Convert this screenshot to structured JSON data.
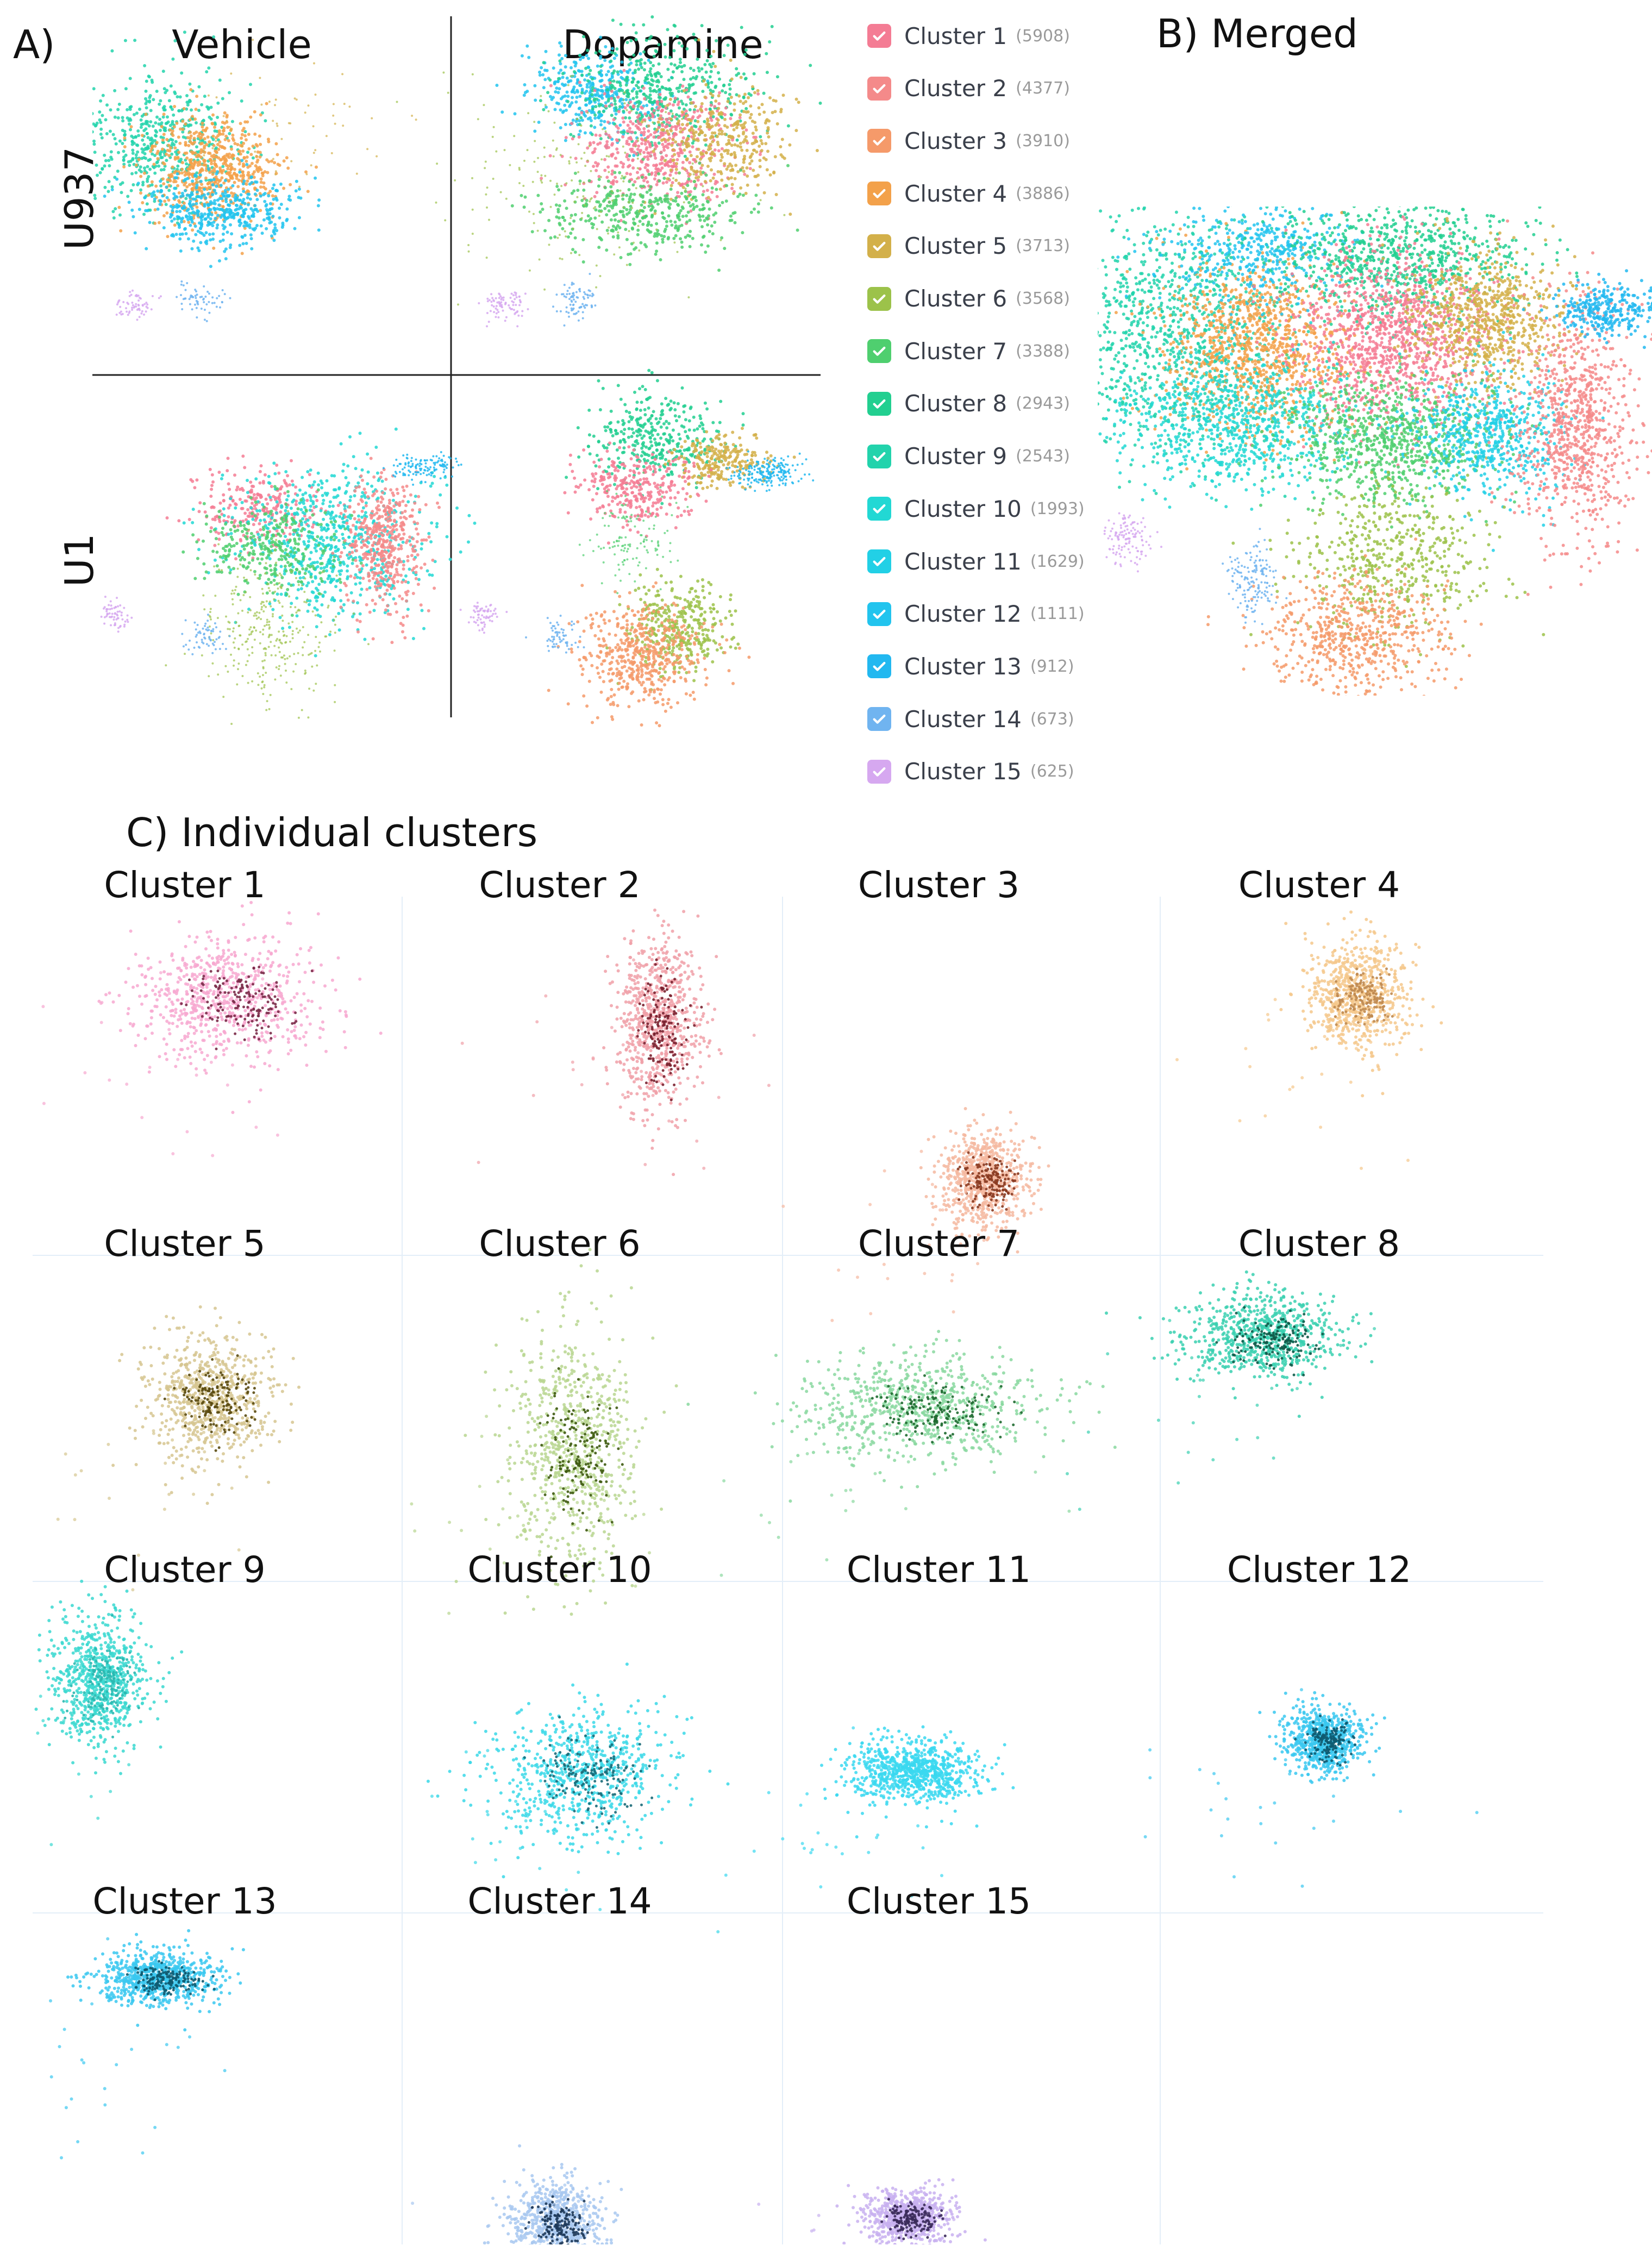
{
  "panels": {
    "a_label": "A)",
    "b_label": "B) Merged",
    "c_label": "C) Individual clusters",
    "col_vehicle": "Vehicle",
    "col_dopamine": "Dopamine",
    "row_u937": "U937",
    "row_u1": "U1"
  },
  "legend": [
    {
      "label": "Cluster 1",
      "count": "(5908)",
      "color": "#f47c94"
    },
    {
      "label": "Cluster 2",
      "count": "(4377)",
      "color": "#f48a8a"
    },
    {
      "label": "Cluster 3",
      "count": "(3910)",
      "color": "#f59a6a"
    },
    {
      "label": "Cluster 4",
      "count": "(3886)",
      "color": "#f3a14a"
    },
    {
      "label": "Cluster 5",
      "count": "(3713)",
      "color": "#d3b04a"
    },
    {
      "label": "Cluster 6",
      "count": "(3568)",
      "color": "#9cc24a"
    },
    {
      "label": "Cluster 7",
      "count": "(3388)",
      "color": "#4fcf6f"
    },
    {
      "label": "Cluster 8",
      "count": "(2943)",
      "color": "#22cf90"
    },
    {
      "label": "Cluster 9",
      "count": "(2543)",
      "color": "#22d3ac"
    },
    {
      "label": "Cluster 10",
      "count": "(1993)",
      "color": "#22d8d4"
    },
    {
      "label": "Cluster 11",
      "count": "(1629)",
      "color": "#22d0e6"
    },
    {
      "label": "Cluster 12",
      "count": "(1111)",
      "color": "#22c4ee"
    },
    {
      "label": "Cluster 13",
      "count": "(912)",
      "color": "#22b8f0"
    },
    {
      "label": "Cluster 14",
      "count": "(673)",
      "color": "#70b4f0"
    },
    {
      "label": "Cluster 15",
      "count": "(625)",
      "color": "#d6a8f0"
    }
  ],
  "cluster_titles": [
    "Cluster 1",
    "Cluster 2",
    "Cluster 3",
    "Cluster 4",
    "Cluster 5",
    "Cluster 6",
    "Cluster 7",
    "Cluster 8",
    "Cluster 9",
    "Cluster 10",
    "Cluster 11",
    "Cluster 12",
    "Cluster 13",
    "Cluster 14",
    "Cluster 15"
  ],
  "chart_data": {
    "type": "scatter",
    "title": "",
    "description_groups": [
      {
        "panel": "A",
        "rows": [
          "U937",
          "U1"
        ],
        "columns": [
          "Vehicle",
          "Dopamine"
        ]
      },
      {
        "panel": "B",
        "name": "Merged"
      },
      {
        "panel": "C",
        "name": "Individual clusters",
        "clusters": 15
      }
    ],
    "series": [
      {
        "name": "Cluster 1",
        "count": 5908
      },
      {
        "name": "Cluster 2",
        "count": 4377
      },
      {
        "name": "Cluster 3",
        "count": 3910
      },
      {
        "name": "Cluster 4",
        "count": 3886
      },
      {
        "name": "Cluster 5",
        "count": 3713
      },
      {
        "name": "Cluster 6",
        "count": 3568
      },
      {
        "name": "Cluster 7",
        "count": 3388
      },
      {
        "name": "Cluster 8",
        "count": 2943
      },
      {
        "name": "Cluster 9",
        "count": 2543
      },
      {
        "name": "Cluster 10",
        "count": 1993
      },
      {
        "name": "Cluster 11",
        "count": 1629
      },
      {
        "name": "Cluster 12",
        "count": 1111
      },
      {
        "name": "Cluster 13",
        "count": 912
      },
      {
        "name": "Cluster 14",
        "count": 673
      },
      {
        "name": "Cluster 15",
        "count": 625
      }
    ],
    "legend": "right of panel A",
    "grid": false
  }
}
